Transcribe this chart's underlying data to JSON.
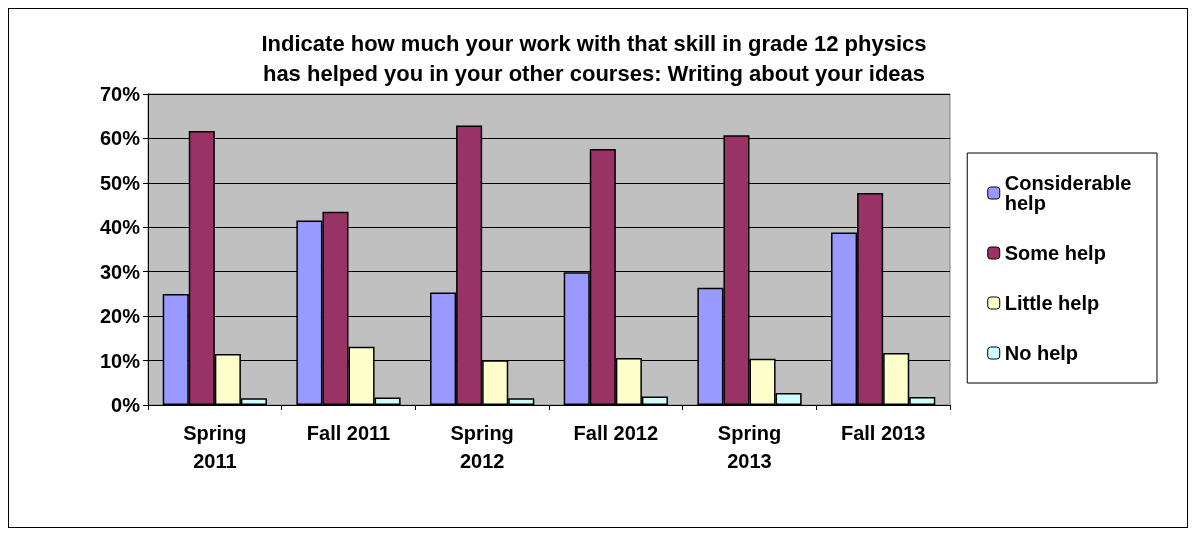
{
  "chart_data": {
    "type": "bar",
    "title": "Indicate how much your work with that skill in grade 12 physics\nhas helped you in your other courses: Writing about your ideas",
    "categories": [
      "Spring\n2011",
      "Fall 2011",
      "Spring\n2012",
      "Fall 2012",
      "Spring\n2013",
      "Fall 2013"
    ],
    "series": [
      {
        "name": "Considerable help",
        "color": "#9999ff",
        "values": [
          25.0,
          41.5,
          25.3,
          29.9,
          26.4,
          38.8
        ]
      },
      {
        "name": "Some help",
        "color": "#993366",
        "values": [
          61.7,
          43.5,
          62.9,
          57.6,
          60.7,
          47.7
        ]
      },
      {
        "name": "Little help",
        "color": "#ffffcc",
        "values": [
          11.5,
          13.1,
          10.1,
          10.6,
          10.4,
          11.7
        ]
      },
      {
        "name": "No help",
        "color": "#ccffff",
        "values": [
          1.5,
          1.7,
          1.5,
          1.9,
          2.7,
          1.8
        ]
      }
    ],
    "ylim": [
      0,
      70
    ],
    "yticks": [
      {
        "value": 0,
        "label": "0%"
      },
      {
        "value": 10,
        "label": "10%"
      },
      {
        "value": 20,
        "label": "20%"
      },
      {
        "value": 30,
        "label": "30%"
      },
      {
        "value": 40,
        "label": "40%"
      },
      {
        "value": 50,
        "label": "50%"
      },
      {
        "value": 60,
        "label": "60%"
      },
      {
        "value": 70,
        "label": "70%"
      }
    ],
    "grid": "y",
    "legend": "right"
  }
}
